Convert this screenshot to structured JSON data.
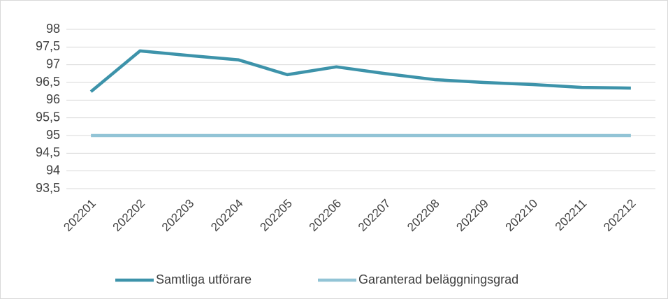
{
  "chart_data": {
    "type": "line",
    "categories": [
      "202201",
      "202202",
      "202203",
      "202204",
      "202205",
      "202206",
      "202207",
      "202208",
      "202209",
      "202210",
      "202211",
      "202212"
    ],
    "series": [
      {
        "name": "Samtliga utförare",
        "color": "#3d93aa",
        "values": [
          96.24,
          97.39,
          97.26,
          97.14,
          96.72,
          96.94,
          96.75,
          96.58,
          96.5,
          96.44,
          96.36,
          96.34
        ]
      },
      {
        "name": "Garanterad beläggningsgrad",
        "color": "#92c4d6",
        "values": [
          95,
          95,
          95,
          95,
          95,
          95,
          95,
          95,
          95,
          95,
          95,
          95
        ]
      }
    ],
    "ylim": [
      93.5,
      98
    ],
    "yticks": [
      {
        "value": 93.5,
        "label": "93,5"
      },
      94,
      {
        "value": 94.5,
        "label": "94,5"
      },
      95,
      {
        "value": 95.5,
        "label": "95,5"
      },
      96,
      {
        "value": 96.5,
        "label": "96,5"
      },
      97,
      {
        "value": 97.5,
        "label": "97,5"
      },
      98
    ],
    "grid": true,
    "legend": "bottom"
  }
}
